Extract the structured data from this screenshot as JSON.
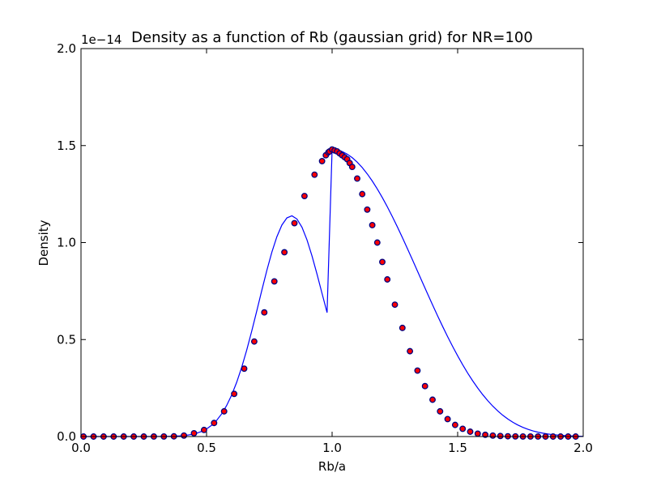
{
  "chart_data": {
    "type": "line",
    "title": "Density as a function of Rb (gaussian grid) for NR=100",
    "xlabel": "Rb/a",
    "ylabel": "Density",
    "y_offset_label": "1e−14",
    "xlim": [
      0.0,
      2.0
    ],
    "ylim": [
      0.0,
      2.0
    ],
    "x_ticks": [
      0.0,
      0.5,
      1.0,
      1.5,
      2.0
    ],
    "x_tick_labels": [
      "0.0",
      "0.5",
      "1.0",
      "1.5",
      "2.0"
    ],
    "y_ticks": [
      0.0,
      0.5,
      1.0,
      1.5,
      2.0
    ],
    "y_tick_labels": [
      "0.0",
      "0.5",
      "1.0",
      "1.5",
      "2.0"
    ],
    "grid": false,
    "legend": "none",
    "series": [
      {
        "kind": "line",
        "color": "#0000ff",
        "x": [
          0.0,
          0.02,
          0.04,
          0.06,
          0.08,
          0.1,
          0.12,
          0.14,
          0.16,
          0.18,
          0.2,
          0.22,
          0.24,
          0.26,
          0.28,
          0.3,
          0.32,
          0.34,
          0.36,
          0.38,
          0.4,
          0.42,
          0.44,
          0.46,
          0.48,
          0.5,
          0.52,
          0.54,
          0.56,
          0.58,
          0.6,
          0.62,
          0.64,
          0.66,
          0.68,
          0.7,
          0.72,
          0.74,
          0.76,
          0.78,
          0.8,
          0.82,
          0.84,
          0.86,
          0.88,
          0.9,
          0.92,
          0.94,
          0.96,
          0.98,
          1.0,
          1.02,
          1.04,
          1.06,
          1.08,
          1.1,
          1.12,
          1.14,
          1.16,
          1.18,
          1.2,
          1.22,
          1.24,
          1.26,
          1.28,
          1.3,
          1.32,
          1.34,
          1.36,
          1.38,
          1.4,
          1.42,
          1.44,
          1.46,
          1.48,
          1.5,
          1.52,
          1.54,
          1.56,
          1.58,
          1.6,
          1.62,
          1.64,
          1.66,
          1.68,
          1.7,
          1.72,
          1.74,
          1.76,
          1.78,
          1.8,
          1.82,
          1.84,
          1.86,
          1.88,
          1.9,
          1.92,
          1.94,
          1.96,
          1.98,
          2.0
        ],
        "y": [
          0.0,
          0.0,
          0.0,
          0.0,
          0.0,
          0.0,
          0.0,
          0.0,
          0.0,
          0.0,
          0.0,
          0.0,
          0.0,
          0.0,
          0.0001,
          0.0002,
          0.0004,
          0.0007,
          0.0013,
          0.0023,
          0.004,
          0.0066,
          0.0107,
          0.0169,
          0.0261,
          0.0393,
          0.0578,
          0.0831,
          0.1166,
          0.1598,
          0.2139,
          0.2797,
          0.3573,
          0.4459,
          0.5437,
          0.6475,
          0.7533,
          0.856,
          0.9501,
          1.0299,
          1.0904,
          1.1273,
          1.138,
          1.1215,
          1.079,
          1.0138,
          0.931,
          0.8368,
          0.7375,
          0.639,
          1.48,
          1.4773,
          1.4694,
          1.4562,
          1.4379,
          1.4147,
          1.3867,
          1.3541,
          1.3173,
          1.2765,
          1.232,
          1.1843,
          1.1336,
          1.0806,
          1.0256,
          0.9689,
          0.9112,
          0.8529,
          0.7945,
          0.7364,
          0.679,
          0.6228,
          0.5681,
          0.5152,
          0.4645,
          0.4161,
          0.3703,
          0.3272,
          0.2871,
          0.2499,
          0.2158,
          0.1847,
          0.1566,
          0.1316,
          0.1095,
          0.0902,
          0.0735,
          0.0593,
          0.0473,
          0.0373,
          0.0291,
          0.0225,
          0.0172,
          0.013,
          0.0097,
          0.0072,
          0.0053,
          0.0038,
          0.0027,
          0.0019,
          0.0013
        ]
      },
      {
        "kind": "scatter",
        "marker_face": "#ff0000",
        "marker_edge": "#000080",
        "x": [
          0.01,
          0.05,
          0.09,
          0.13,
          0.17,
          0.21,
          0.25,
          0.29,
          0.33,
          0.37,
          0.41,
          0.45,
          0.49,
          0.53,
          0.57,
          0.61,
          0.65,
          0.69,
          0.73,
          0.77,
          0.81,
          0.85,
          0.89,
          0.93,
          0.96,
          0.975,
          0.985,
          0.99,
          1.0,
          1.01,
          1.02,
          1.03,
          1.04,
          1.05,
          1.06,
          1.07,
          1.08,
          1.1,
          1.12,
          1.14,
          1.16,
          1.18,
          1.2,
          1.22,
          1.25,
          1.28,
          1.31,
          1.34,
          1.37,
          1.4,
          1.43,
          1.46,
          1.49,
          1.52,
          1.55,
          1.58,
          1.61,
          1.64,
          1.67,
          1.7,
          1.73,
          1.76,
          1.79,
          1.82,
          1.85,
          1.88,
          1.91,
          1.94,
          1.97
        ],
        "y": [
          0.0,
          0.0,
          0.0,
          0.0,
          0.0,
          0.0,
          0.0,
          0.0001,
          0.0003,
          0.001,
          0.005,
          0.017,
          0.034,
          0.07,
          0.13,
          0.22,
          0.35,
          0.49,
          0.64,
          0.8,
          0.95,
          1.1,
          1.24,
          1.35,
          1.42,
          1.45,
          1.465,
          1.47,
          1.48,
          1.475,
          1.47,
          1.46,
          1.45,
          1.44,
          1.43,
          1.41,
          1.39,
          1.33,
          1.25,
          1.17,
          1.09,
          1.0,
          0.9,
          0.81,
          0.68,
          0.56,
          0.44,
          0.34,
          0.26,
          0.19,
          0.13,
          0.09,
          0.06,
          0.04,
          0.025,
          0.015,
          0.009,
          0.005,
          0.003,
          0.0015,
          0.0008,
          0.0004,
          0.0002,
          0.0001,
          0.0,
          0.0,
          0.0,
          0.0,
          0.0
        ]
      }
    ]
  }
}
